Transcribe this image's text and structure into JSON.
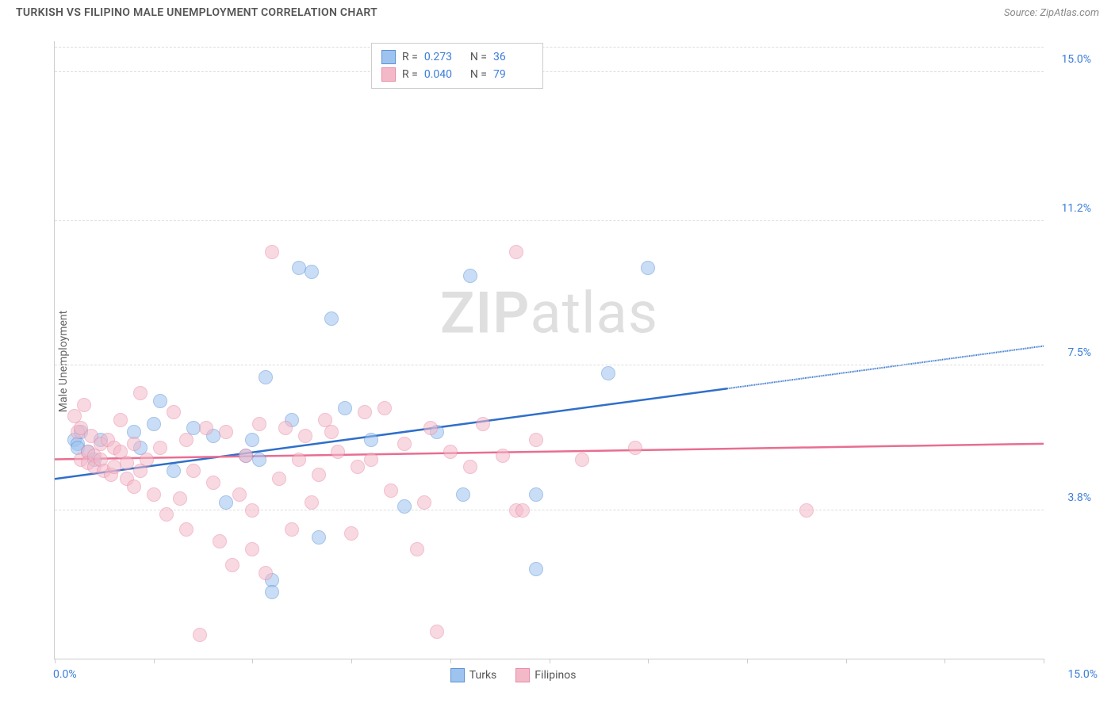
{
  "header": {
    "title": "TURKISH VS FILIPINO MALE UNEMPLOYMENT CORRELATION CHART",
    "source_prefix": "Source: ",
    "source_name": "ZipAtlas.com"
  },
  "ylabel": "Male Unemployment",
  "watermark": {
    "bold": "ZIP",
    "rest": "atlas"
  },
  "chart": {
    "type": "scatter",
    "xlim": [
      0,
      15
    ],
    "ylim": [
      0,
      15.8
    ],
    "y_ticks": [
      {
        "value": 3.8,
        "label": "3.8%"
      },
      {
        "value": 7.5,
        "label": "7.5%"
      },
      {
        "value": 11.2,
        "label": "11.2%"
      },
      {
        "value": 15.0,
        "label": "15.0%"
      }
    ],
    "x_ticks": [
      0,
      1.5,
      3,
      4.5,
      6,
      7.5,
      9,
      10.5,
      12,
      13.5,
      15
    ],
    "x_label_start": "0.0%",
    "x_label_end": "15.0%",
    "background_color": "#ffffff",
    "grid_color": "#dddddd",
    "axis_color": "#cccccc",
    "point_radius": 9,
    "point_opacity": 0.55,
    "series": [
      {
        "name": "Turks",
        "fill": "#9ec3ef",
        "stroke": "#5b93d6",
        "line_color": "#2f6fc9",
        "R": "0.273",
        "N": "36",
        "trend": {
          "y_at_x0": 4.6,
          "y_at_xmax": 8.0,
          "solid_until_x": 10.2
        },
        "points": [
          [
            0.3,
            5.6
          ],
          [
            0.35,
            5.5
          ],
          [
            0.35,
            5.4
          ],
          [
            0.4,
            5.8
          ],
          [
            0.5,
            5.3
          ],
          [
            0.6,
            5.1
          ],
          [
            0.7,
            5.6
          ],
          [
            1.2,
            5.8
          ],
          [
            1.3,
            5.4
          ],
          [
            1.5,
            6.0
          ],
          [
            1.6,
            6.6
          ],
          [
            1.8,
            4.8
          ],
          [
            2.1,
            5.9
          ],
          [
            2.4,
            5.7
          ],
          [
            2.6,
            4.0
          ],
          [
            3.0,
            5.6
          ],
          [
            3.1,
            5.1
          ],
          [
            3.2,
            7.2
          ],
          [
            3.3,
            2.0
          ],
          [
            3.3,
            1.7
          ],
          [
            3.6,
            6.1
          ],
          [
            3.7,
            10.0
          ],
          [
            3.9,
            9.9
          ],
          [
            4.0,
            3.1
          ],
          [
            4.2,
            8.7
          ],
          [
            4.4,
            6.4
          ],
          [
            4.8,
            5.6
          ],
          [
            5.3,
            3.9
          ],
          [
            5.8,
            5.8
          ],
          [
            6.2,
            4.2
          ],
          [
            6.3,
            9.8
          ],
          [
            7.3,
            2.3
          ],
          [
            7.3,
            4.2
          ],
          [
            8.4,
            7.3
          ],
          [
            9.0,
            10.0
          ],
          [
            2.9,
            5.2
          ]
        ]
      },
      {
        "name": "Filipinos",
        "fill": "#f4b9c9",
        "stroke": "#e88aa5",
        "line_color": "#e86e91",
        "R": "0.040",
        "N": "79",
        "trend": {
          "y_at_x0": 5.1,
          "y_at_xmax": 5.5,
          "solid_until_x": 15
        },
        "points": [
          [
            0.3,
            6.2
          ],
          [
            0.35,
            5.8
          ],
          [
            0.4,
            5.9
          ],
          [
            0.4,
            5.1
          ],
          [
            0.45,
            6.5
          ],
          [
            0.5,
            5.3
          ],
          [
            0.5,
            5.0
          ],
          [
            0.55,
            5.7
          ],
          [
            0.6,
            5.2
          ],
          [
            0.6,
            4.9
          ],
          [
            0.7,
            5.1
          ],
          [
            0.7,
            5.5
          ],
          [
            0.75,
            4.8
          ],
          [
            0.8,
            5.6
          ],
          [
            0.85,
            4.7
          ],
          [
            0.9,
            5.4
          ],
          [
            0.9,
            4.9
          ],
          [
            1.0,
            5.3
          ],
          [
            1.0,
            6.1
          ],
          [
            1.1,
            5.0
          ],
          [
            1.1,
            4.6
          ],
          [
            1.2,
            5.5
          ],
          [
            1.2,
            4.4
          ],
          [
            1.3,
            6.8
          ],
          [
            1.3,
            4.8
          ],
          [
            1.4,
            5.1
          ],
          [
            1.5,
            4.2
          ],
          [
            1.6,
            5.4
          ],
          [
            1.7,
            3.7
          ],
          [
            1.8,
            6.3
          ],
          [
            1.9,
            4.1
          ],
          [
            2.0,
            5.6
          ],
          [
            2.0,
            3.3
          ],
          [
            2.1,
            4.8
          ],
          [
            2.2,
            0.6
          ],
          [
            2.3,
            5.9
          ],
          [
            2.4,
            4.5
          ],
          [
            2.5,
            3.0
          ],
          [
            2.6,
            5.8
          ],
          [
            2.7,
            2.4
          ],
          [
            2.8,
            4.2
          ],
          [
            2.9,
            5.2
          ],
          [
            3.0,
            2.8
          ],
          [
            3.0,
            3.8
          ],
          [
            3.1,
            6.0
          ],
          [
            3.2,
            2.2
          ],
          [
            3.3,
            10.4
          ],
          [
            3.4,
            4.6
          ],
          [
            3.5,
            5.9
          ],
          [
            3.6,
            3.3
          ],
          [
            3.7,
            5.1
          ],
          [
            3.8,
            5.7
          ],
          [
            4.0,
            4.7
          ],
          [
            4.1,
            6.1
          ],
          [
            4.3,
            5.3
          ],
          [
            4.5,
            3.2
          ],
          [
            4.6,
            4.9
          ],
          [
            4.7,
            6.3
          ],
          [
            4.8,
            5.1
          ],
          [
            5.0,
            6.4
          ],
          [
            5.1,
            4.3
          ],
          [
            5.3,
            5.5
          ],
          [
            5.5,
            2.8
          ],
          [
            5.6,
            4.0
          ],
          [
            5.7,
            5.9
          ],
          [
            5.8,
            0.7
          ],
          [
            6.0,
            5.3
          ],
          [
            6.3,
            4.9
          ],
          [
            6.5,
            6.0
          ],
          [
            6.8,
            5.2
          ],
          [
            7.0,
            10.4
          ],
          [
            7.0,
            3.8
          ],
          [
            7.1,
            3.8
          ],
          [
            7.3,
            5.6
          ],
          [
            8.0,
            5.1
          ],
          [
            8.8,
            5.4
          ],
          [
            11.4,
            3.8
          ],
          [
            4.2,
            5.8
          ],
          [
            3.9,
            4.0
          ]
        ]
      }
    ]
  },
  "legend_top": {
    "r_label": "R =",
    "n_label": "N ="
  },
  "legend_bottom": [
    {
      "label": "Turks",
      "fill": "#9ec3ef",
      "stroke": "#5b93d6"
    },
    {
      "label": "Filipinos",
      "fill": "#f4b9c9",
      "stroke": "#e88aa5"
    }
  ]
}
